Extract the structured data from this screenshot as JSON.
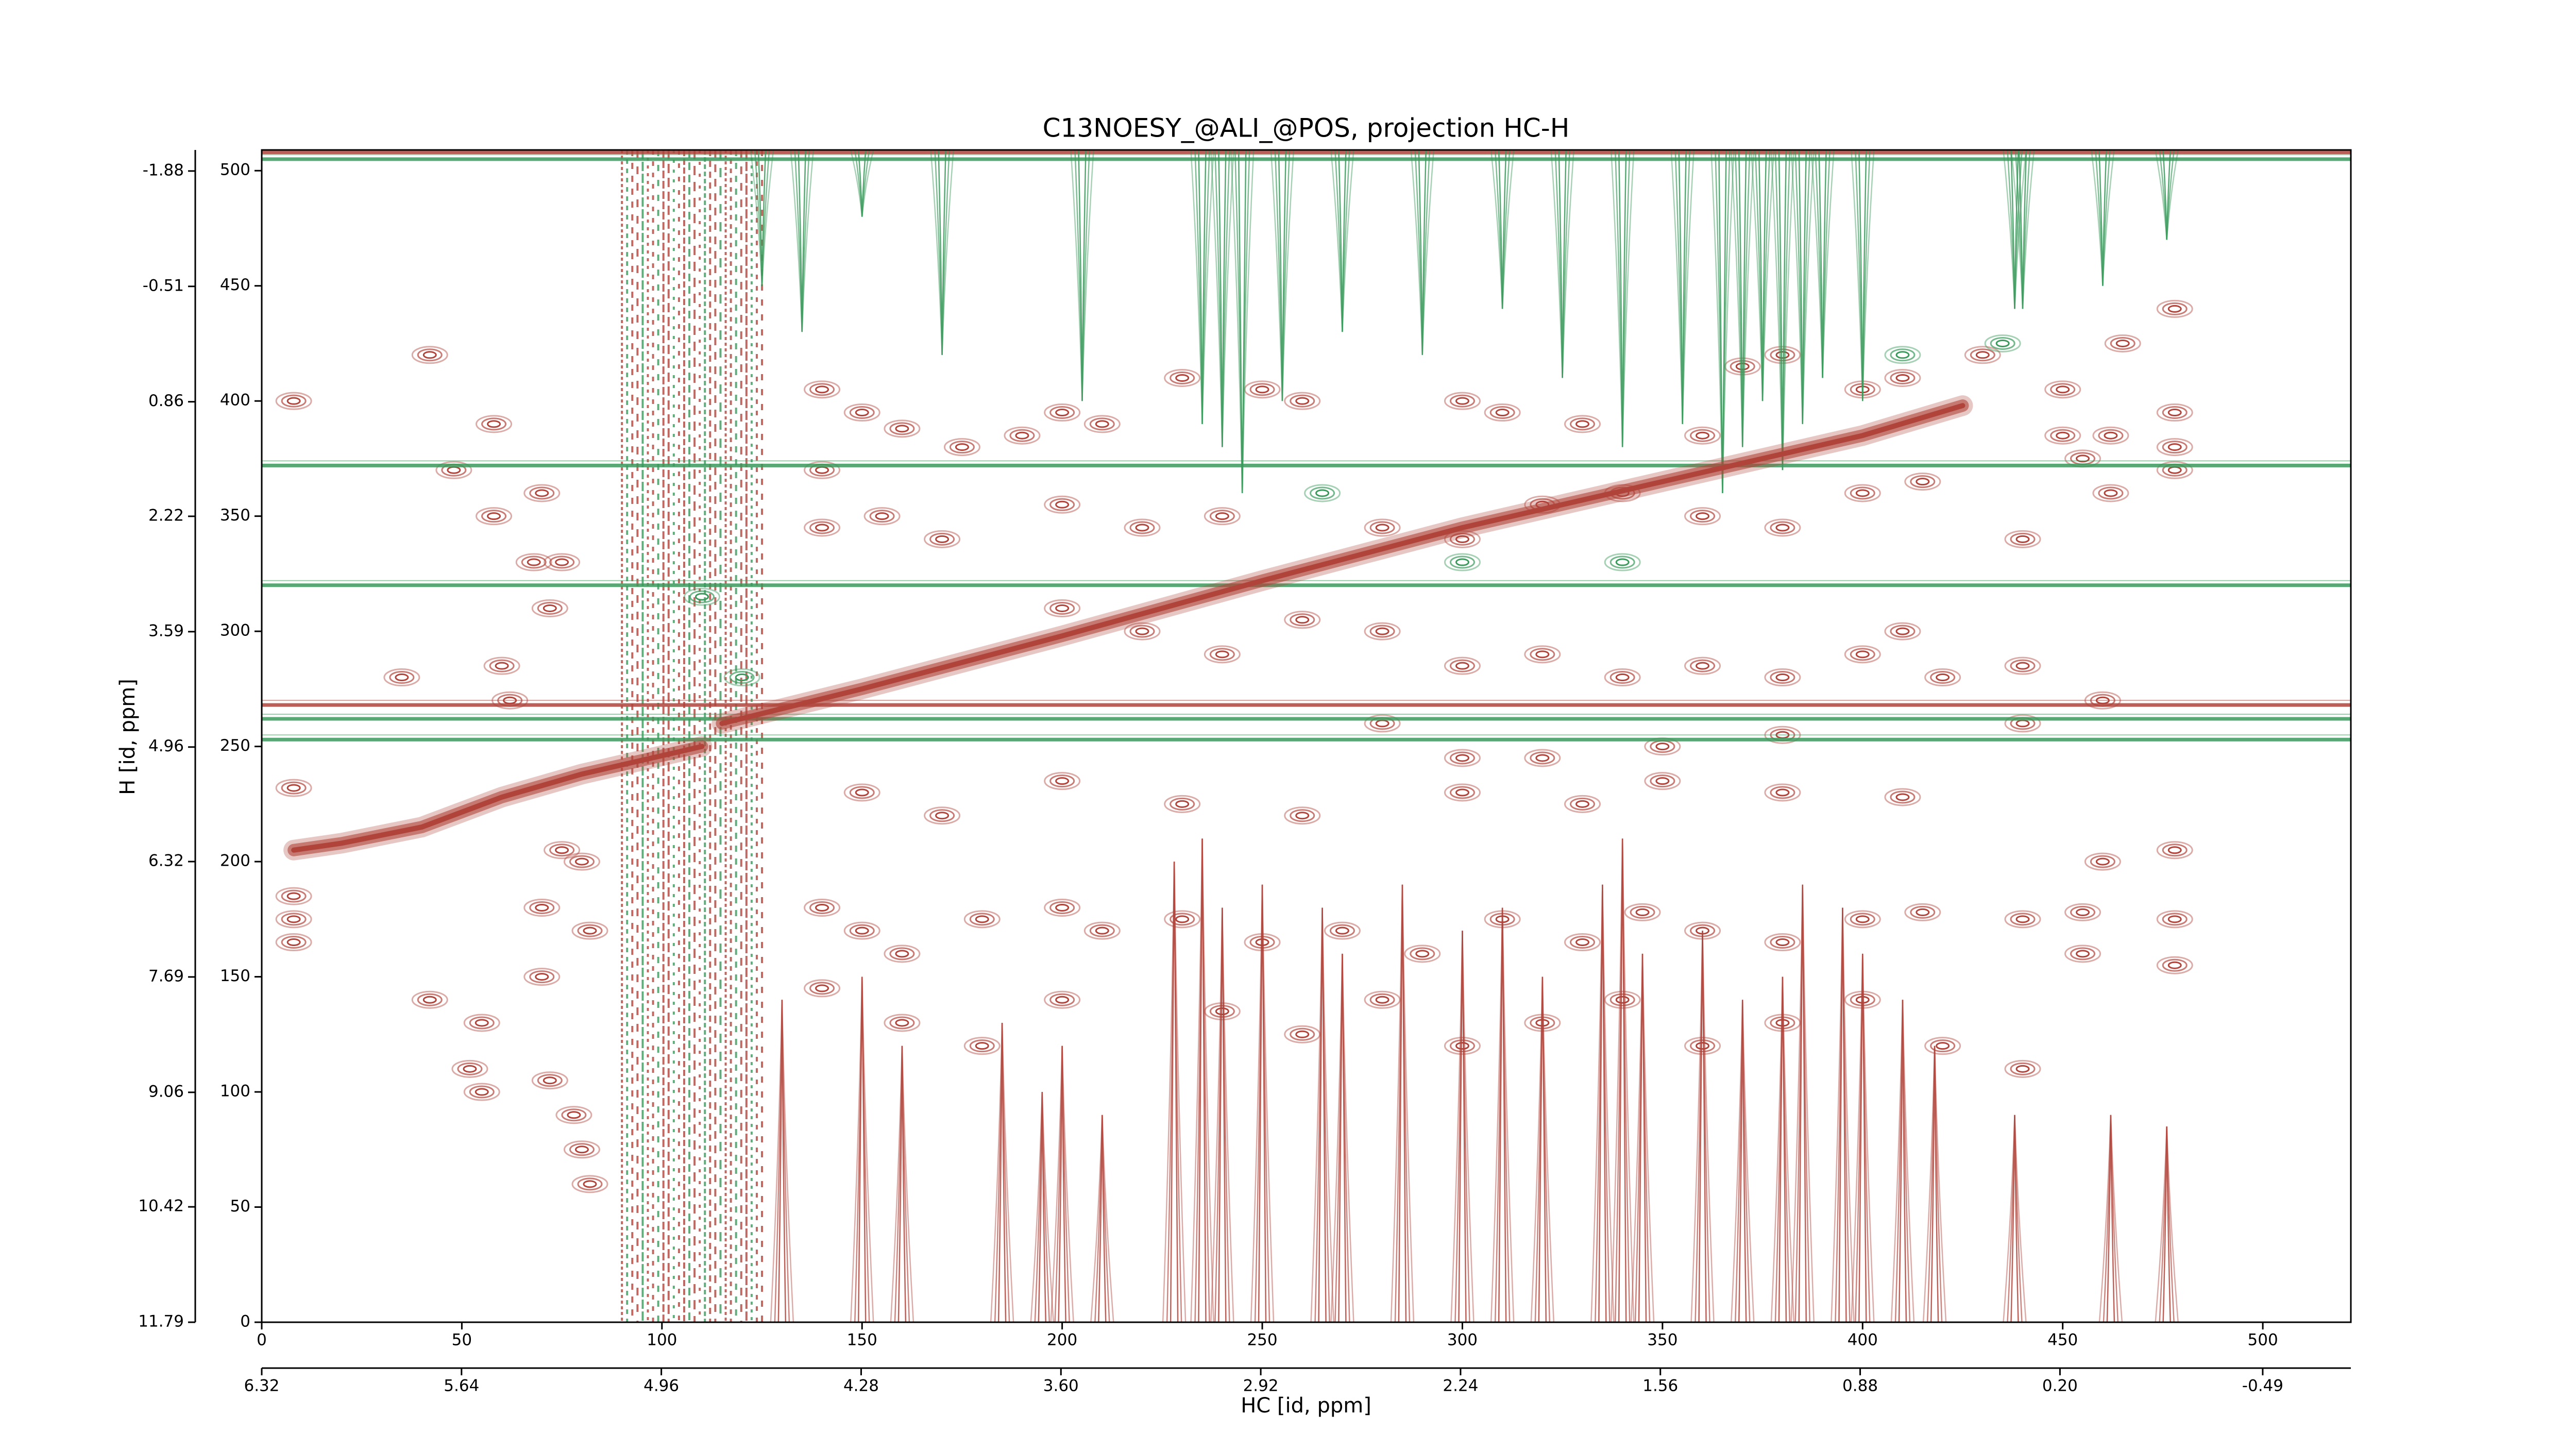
{
  "chart_data": {
    "type": "contour",
    "title": "C13NOESY_@ALI_@POS, projection HC-H",
    "xlabel": "HC [id, ppm]",
    "ylabel": "H [id, ppm]",
    "xlim": [
      0,
      522
    ],
    "xticks": [
      0,
      50,
      100,
      150,
      200,
      250,
      300,
      350,
      400,
      450,
      500
    ],
    "ylim": [
      0,
      509
    ],
    "yticks": [
      0,
      50,
      100,
      150,
      200,
      250,
      300,
      350,
      400,
      450,
      500
    ],
    "x2lim": [
      6.32,
      -0.79
    ],
    "x2ticks": [
      6.32,
      5.64,
      4.96,
      4.28,
      {
        "value": 3.6,
        "label": "3.60"
      },
      2.92,
      2.24,
      1.56,
      0.88,
      {
        "value": 0.2,
        "label": "0.20"
      },
      -0.49
    ],
    "y2lim": [
      11.79,
      -2.13
    ],
    "y2ticks": [
      11.79,
      10.42,
      9.06,
      7.69,
      6.32,
      4.96,
      3.59,
      2.22,
      0.86,
      -0.51,
      -1.88
    ],
    "band": [
      90,
      125
    ],
    "diagonal": {
      "color": "#b0443b",
      "x": [
        8,
        20,
        40,
        60,
        80,
        100,
        110,
        null,
        115,
        150,
        200,
        250,
        300,
        350,
        400,
        425
      ],
      "y": [
        205,
        208,
        215,
        228,
        238,
        246,
        250,
        null,
        260,
        275,
        298,
        322,
        345,
        365,
        385,
        398
      ]
    },
    "series": [
      {
        "color": "#b0443b",
        "x": [
          8,
          42,
          58,
          48,
          58,
          70,
          68,
          72,
          75,
          62,
          35,
          60,
          8,
          70,
          42,
          55,
          52,
          55,
          72,
          78,
          80,
          82,
          82,
          70,
          8,
          8,
          8,
          75,
          80,
          140,
          150,
          160,
          140,
          175,
          190,
          200,
          210,
          230,
          250,
          260,
          300,
          310,
          330,
          360,
          370,
          380,
          400,
          410,
          430,
          450,
          465,
          478,
          450,
          455,
          462,
          478,
          478,
          478,
          462,
          140,
          155,
          170,
          200,
          220,
          240,
          280,
          300,
          320,
          340,
          360,
          380,
          400,
          415,
          440,
          200,
          220,
          240,
          260,
          280,
          300,
          320,
          340,
          360,
          380,
          400,
          410,
          420,
          440,
          460,
          440,
          380,
          350,
          320,
          300,
          280,
          140,
          150,
          160,
          180,
          200,
          210,
          230,
          250,
          270,
          290,
          310,
          330,
          345,
          360,
          380,
          400,
          415,
          440,
          455,
          478,
          478,
          455,
          140,
          160,
          180,
          200,
          240,
          260,
          280,
          300,
          320,
          340,
          360,
          380,
          400,
          420,
          440,
          150,
          170,
          200,
          230,
          260,
          300,
          330,
          350,
          380,
          410,
          460,
          478
        ],
        "y": [
          400,
          420,
          390,
          370,
          350,
          360,
          330,
          310,
          330,
          270,
          280,
          285,
          232,
          150,
          140,
          130,
          110,
          100,
          105,
          90,
          75,
          60,
          170,
          180,
          185,
          175,
          165,
          205,
          200,
          405,
          395,
          388,
          370,
          380,
          385,
          395,
          390,
          410,
          405,
          400,
          400,
          395,
          390,
          385,
          415,
          420,
          405,
          410,
          420,
          405,
          425,
          440,
          385,
          375,
          360,
          395,
          380,
          370,
          385,
          345,
          350,
          340,
          355,
          345,
          350,
          345,
          340,
          355,
          360,
          350,
          345,
          360,
          365,
          340,
          310,
          300,
          290,
          305,
          300,
          285,
          290,
          280,
          285,
          280,
          290,
          300,
          280,
          285,
          270,
          260,
          255,
          250,
          245,
          245,
          260,
          180,
          170,
          160,
          175,
          180,
          170,
          175,
          165,
          170,
          160,
          175,
          165,
          178,
          170,
          165,
          175,
          178,
          175,
          178,
          175,
          155,
          160,
          145,
          130,
          120,
          140,
          135,
          125,
          140,
          120,
          130,
          140,
          120,
          130,
          140,
          120,
          110,
          230,
          220,
          235,
          225,
          220,
          230,
          225,
          235,
          230,
          228,
          200,
          205
        ],
        "ridges": {
          "x": [
            130,
            150,
            160,
            185,
            195,
            200,
            210,
            228,
            235,
            240,
            250,
            265,
            270,
            285,
            300,
            310,
            320,
            335,
            340,
            345,
            360,
            370,
            380,
            385,
            395,
            400,
            410,
            418,
            438,
            462,
            476
          ],
          "y": [
            140,
            150,
            120,
            130,
            100,
            120,
            90,
            200,
            210,
            180,
            190,
            180,
            160,
            190,
            170,
            180,
            150,
            190,
            210,
            160,
            170,
            140,
            150,
            190,
            180,
            160,
            140,
            120,
            90,
            90,
            85
          ]
        },
        "hlines": [
          268,
          508
        ]
      },
      {
        "color": "#3a9a5c",
        "x": [
          435,
          410,
          300,
          265,
          340,
          110,
          120
        ],
        "y": [
          425,
          420,
          330,
          360,
          330,
          315,
          280
        ],
        "ridges": {
          "x": [
            125,
            135,
            150,
            170,
            205,
            235,
            240,
            245,
            255,
            270,
            290,
            310,
            325,
            340,
            355,
            365,
            370,
            375,
            380,
            385,
            390,
            400,
            438,
            440,
            460,
            476
          ],
          "y": [
            450,
            430,
            480,
            420,
            400,
            390,
            380,
            360,
            400,
            430,
            420,
            440,
            410,
            380,
            390,
            360,
            380,
            400,
            370,
            390,
            410,
            400,
            440,
            440,
            450,
            470
          ]
        },
        "hlines": [
          253,
          262,
          320,
          372,
          505
        ]
      }
    ]
  }
}
